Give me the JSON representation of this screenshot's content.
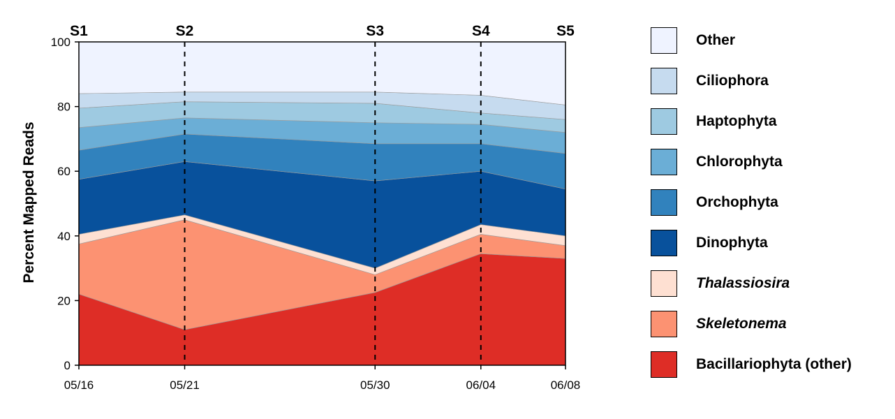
{
  "chart_data": {
    "type": "area",
    "stacked": true,
    "ylabel": "Percent Mapped Reads",
    "xlabel": "",
    "ylim": [
      0,
      100
    ],
    "yticks": [
      0,
      20,
      40,
      60,
      80,
      100
    ],
    "x": [
      "05/16",
      "05/21",
      "05/30",
      "06/04",
      "06/08"
    ],
    "x_day_index": [
      0,
      5,
      14,
      19,
      23
    ],
    "samples": [
      "S1",
      "S2",
      "S3",
      "S4",
      "S5"
    ],
    "sample_markers": "dashed vertical lines at S2, S3, S4",
    "legend_position": "right",
    "series": [
      {
        "name": "Bacillariophyta (other)",
        "italic": false,
        "color": "#de2d26",
        "values": [
          22.0,
          11.0,
          22.5,
          34.5,
          33.0
        ]
      },
      {
        "name": "Skeletonema",
        "italic": true,
        "color": "#fc9272",
        "values": [
          15.5,
          34.0,
          5.5,
          6.0,
          4.0
        ]
      },
      {
        "name": "Thalassiosira",
        "italic": true,
        "color": "#fee0d2",
        "values": [
          3.0,
          1.5,
          2.0,
          3.0,
          3.0
        ]
      },
      {
        "name": "Dinophyta",
        "italic": false,
        "color": "#08519c",
        "values": [
          17.0,
          16.5,
          27.0,
          16.5,
          14.5
        ]
      },
      {
        "name": "Orchophyta",
        "italic": false,
        "color": "#3182bd",
        "values": [
          9.0,
          8.5,
          11.5,
          8.5,
          11.0
        ]
      },
      {
        "name": "Chlorophyta",
        "italic": false,
        "color": "#6baed6",
        "values": [
          7.0,
          5.0,
          6.5,
          6.0,
          6.5
        ]
      },
      {
        "name": "Haptophyta",
        "italic": false,
        "color": "#9ecae1",
        "values": [
          6.0,
          5.0,
          6.0,
          3.5,
          4.0
        ]
      },
      {
        "name": "Ciliophora",
        "italic": false,
        "color": "#c6dbef",
        "values": [
          4.5,
          3.0,
          3.5,
          5.5,
          4.5
        ]
      },
      {
        "name": "Other",
        "italic": false,
        "color": "#eff3ff",
        "values": [
          16.0,
          15.5,
          15.5,
          16.5,
          19.5
        ]
      }
    ]
  }
}
